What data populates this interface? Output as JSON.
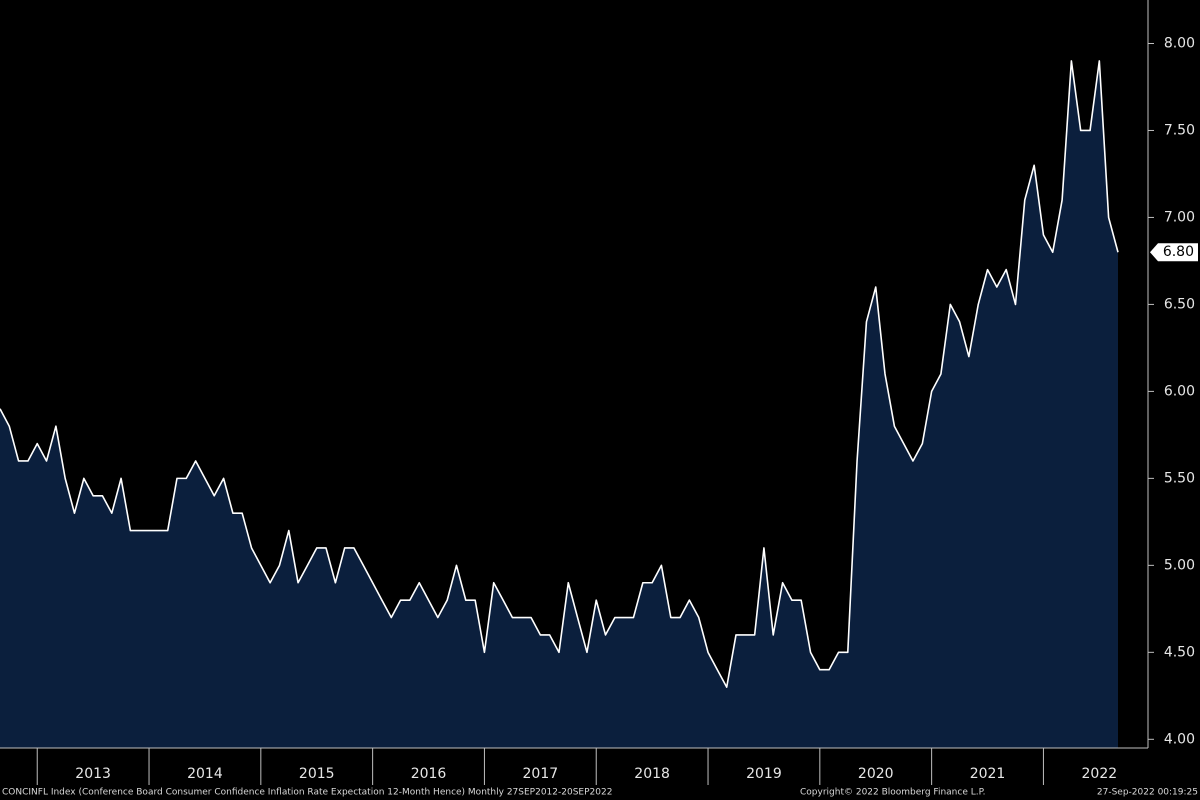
{
  "chart_data": {
    "type": "area",
    "footer_left": "CONCINFL Index (Conference Board Consumer Confidence Inflation Rate Expectation 12-Month Hence)  Monthly 27SEP2012-20SEP2022",
    "footer_mid": "Copyright© 2022 Bloomberg Finance L.P.",
    "footer_right": "27-Sep-2022 00:19:25",
    "color": "#ffffff",
    "fill": "#0b1f3d",
    "xlim": [
      2012.667,
      2022.667
    ],
    "ylim": [
      3.95,
      8.25
    ],
    "xticks": [
      {
        "value": 2013.5,
        "label": "2013"
      },
      {
        "value": 2014.5,
        "label": "2014"
      },
      {
        "value": 2015.5,
        "label": "2015"
      },
      {
        "value": 2016.5,
        "label": "2016"
      },
      {
        "value": 2017.5,
        "label": "2017"
      },
      {
        "value": 2018.5,
        "label": "2018"
      },
      {
        "value": 2019.5,
        "label": "2019"
      },
      {
        "value": 2020.5,
        "label": "2020"
      },
      {
        "value": 2021.5,
        "label": "2021"
      },
      {
        "value": 2022.5,
        "label": "2022"
      }
    ],
    "yticks": [
      {
        "value": 4,
        "label": "4.00"
      },
      {
        "value": 4.5,
        "label": "4.50"
      },
      {
        "value": 5,
        "label": "5.00"
      },
      {
        "value": 5.5,
        "label": "5.50"
      },
      {
        "value": 6,
        "label": "6.00"
      },
      {
        "value": 6.5,
        "label": "6.50"
      },
      {
        "value": 7,
        "label": "7.00"
      },
      {
        "value": 7.5,
        "label": "7.50"
      },
      {
        "value": 8,
        "label": "8.00"
      }
    ],
    "x": [
      2012.667,
      2012.75,
      2012.833,
      2012.917,
      2013,
      2013.083,
      2013.167,
      2013.25,
      2013.333,
      2013.417,
      2013.5,
      2013.583,
      2013.667,
      2013.75,
      2013.833,
      2013.917,
      2014,
      2014.083,
      2014.167,
      2014.25,
      2014.333,
      2014.417,
      2014.5,
      2014.583,
      2014.667,
      2014.75,
      2014.833,
      2014.917,
      2015,
      2015.083,
      2015.167,
      2015.25,
      2015.333,
      2015.417,
      2015.5,
      2015.583,
      2015.667,
      2015.75,
      2015.833,
      2015.917,
      2016,
      2016.083,
      2016.167,
      2016.25,
      2016.333,
      2016.417,
      2016.5,
      2016.583,
      2016.667,
      2016.75,
      2016.833,
      2016.917,
      2017,
      2017.083,
      2017.167,
      2017.25,
      2017.333,
      2017.417,
      2017.5,
      2017.583,
      2017.667,
      2017.75,
      2017.833,
      2017.917,
      2018,
      2018.083,
      2018.167,
      2018.25,
      2018.333,
      2018.417,
      2018.5,
      2018.583,
      2018.667,
      2018.75,
      2018.833,
      2018.917,
      2019,
      2019.083,
      2019.167,
      2019.25,
      2019.333,
      2019.417,
      2019.5,
      2019.583,
      2019.667,
      2019.75,
      2019.833,
      2019.917,
      2020,
      2020.083,
      2020.167,
      2020.25,
      2020.333,
      2020.417,
      2020.5,
      2020.583,
      2020.667,
      2020.75,
      2020.833,
      2020.917,
      2021,
      2021.083,
      2021.167,
      2021.25,
      2021.333,
      2021.417,
      2021.5,
      2021.583,
      2021.667,
      2021.75,
      2021.833,
      2021.917,
      2022,
      2022.083,
      2022.167,
      2022.25,
      2022.333,
      2022.417,
      2022.5,
      2022.583,
      2022.667
    ],
    "values": [
      5.9,
      5.8,
      5.6,
      5.6,
      5.7,
      5.6,
      5.8,
      5.5,
      5.3,
      5.5,
      5.4,
      5.4,
      5.3,
      5.5,
      5.2,
      5.2,
      5.2,
      5.2,
      5.2,
      5.5,
      5.5,
      5.6,
      5.5,
      5.4,
      5.5,
      5.3,
      5.3,
      5.1,
      5.0,
      4.9,
      5.0,
      5.2,
      4.9,
      5.0,
      5.1,
      5.1,
      4.9,
      5.1,
      5.1,
      5.0,
      4.9,
      4.8,
      4.7,
      4.8,
      4.8,
      4.9,
      4.8,
      4.7,
      4.8,
      5.0,
      4.8,
      4.8,
      4.5,
      4.9,
      4.8,
      4.7,
      4.7,
      4.7,
      4.6,
      4.6,
      4.5,
      4.9,
      4.7,
      4.5,
      4.8,
      4.6,
      4.7,
      4.7,
      4.7,
      4.9,
      4.9,
      5.0,
      4.7,
      4.7,
      4.8,
      4.7,
      4.5,
      4.4,
      4.3,
      4.6,
      4.6,
      4.6,
      5.1,
      4.6,
      4.9,
      4.8,
      4.8,
      4.5,
      4.4,
      4.4,
      4.5,
      4.5,
      5.6,
      6.4,
      6.6,
      6.1,
      5.8,
      5.7,
      5.6,
      5.7,
      6.0,
      6.1,
      6.5,
      6.4,
      6.2,
      6.5,
      6.7,
      6.6,
      6.7,
      6.5,
      7.1,
      7.3,
      6.9,
      6.8,
      7.1,
      7.9,
      7.5,
      7.5,
      7.9,
      7.0,
      6.8
    ],
    "value_labels": [
      null,
      null,
      null,
      null,
      null,
      null,
      null,
      null,
      null,
      null,
      null,
      null,
      null,
      null,
      null,
      null,
      null,
      null,
      null,
      null,
      null,
      null,
      null,
      null,
      null,
      null,
      null,
      null,
      null,
      null,
      null,
      null,
      null,
      null,
      null,
      null,
      null,
      null,
      null,
      null,
      null,
      null,
      null,
      null,
      null,
      null,
      null,
      null,
      null,
      null,
      null,
      null,
      null,
      null,
      null,
      null,
      null,
      null,
      null,
      null,
      null,
      null,
      null,
      null,
      null,
      null,
      null,
      null,
      null,
      null,
      null,
      null,
      null,
      null,
      null,
      null,
      null,
      null,
      null,
      null,
      null,
      null,
      null,
      null,
      null,
      null,
      null,
      null,
      null,
      null,
      null,
      null,
      null,
      null,
      null,
      null,
      null,
      null,
      null,
      null,
      null,
      null,
      null,
      null,
      null,
      null,
      null,
      null,
      null,
      null,
      null,
      null,
      null,
      null,
      null,
      null,
      null,
      null,
      null,
      null,
      "6.80"
    ]
  }
}
